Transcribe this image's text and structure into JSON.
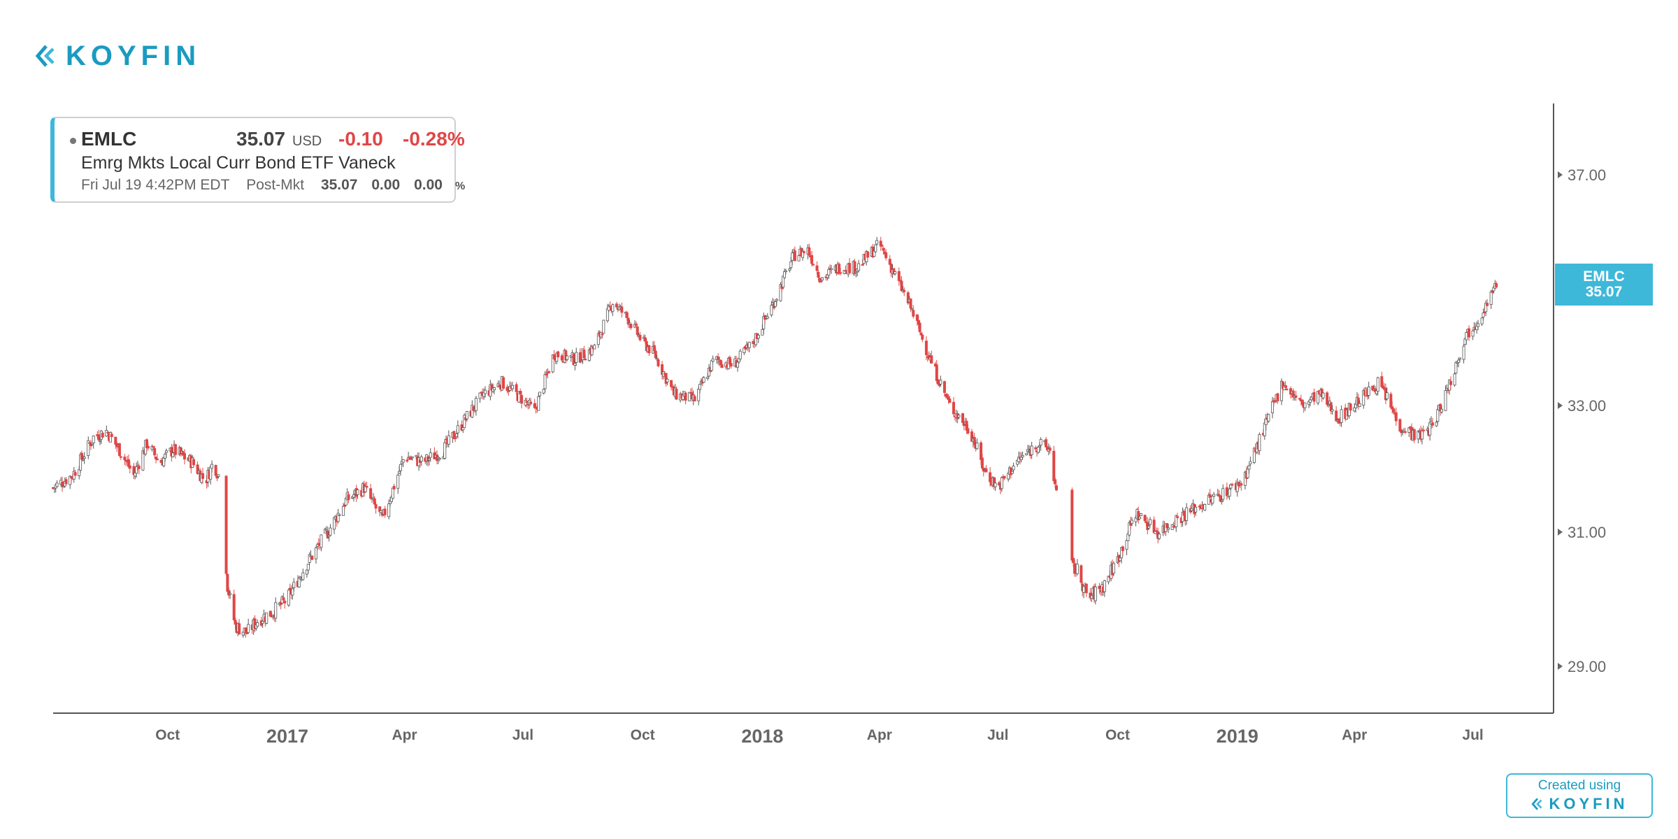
{
  "logo": {
    "icon": "koyfin-logo-icon",
    "text": "KOYFIN",
    "color": "#1a9bc0"
  },
  "quote": {
    "symbol": "EMLC",
    "price": "35.07",
    "currency": "USD",
    "change": "-0.10",
    "change_pct": "-0.28%",
    "name": "Emrg Mkts Local Curr Bond ETF Vaneck",
    "timestamp": "Fri Jul 19 4:42PM EDT",
    "session_label": "Post-Mkt",
    "post_price": "35.07",
    "post_change": "0.00",
    "post_change_pct": "0.00",
    "post_change_pct_sign": "%",
    "accent_color": "#3eb8d9",
    "negative_color": "#e04646"
  },
  "price_tag": {
    "symbol": "EMLC",
    "price": "35.07",
    "color": "#3eb8d9"
  },
  "badge": {
    "top": "Created using",
    "logo_text": "KOYFIN"
  },
  "chart_data": {
    "type": "candlestick",
    "title": "",
    "y_ticks": [
      "37.00",
      "33.00",
      "31.00",
      "29.00"
    ],
    "y_tick_values": [
      37.0,
      33.0,
      31.0,
      29.0
    ],
    "ylim": [
      28.3,
      38.2
    ],
    "x_ticks": [
      {
        "label": "Oct",
        "date": "2016-10-01",
        "bold": false
      },
      {
        "label": "2017",
        "date": "2017-01-01",
        "bold": true
      },
      {
        "label": "Apr",
        "date": "2017-04-01",
        "bold": false
      },
      {
        "label": "Jul",
        "date": "2017-07-01",
        "bold": false
      },
      {
        "label": "Oct",
        "date": "2017-10-01",
        "bold": false
      },
      {
        "label": "2018",
        "date": "2018-01-01",
        "bold": true
      },
      {
        "label": "Apr",
        "date": "2018-04-01",
        "bold": false
      },
      {
        "label": "Jul",
        "date": "2018-07-01",
        "bold": false
      },
      {
        "label": "Oct",
        "date": "2018-10-01",
        "bold": false
      },
      {
        "label": "2019",
        "date": "2019-01-01",
        "bold": true
      },
      {
        "label": "Apr",
        "date": "2019-04-01",
        "bold": false
      },
      {
        "label": "Jul",
        "date": "2019-07-01",
        "bold": false
      }
    ],
    "x_range": [
      "2016-07-05",
      "2019-09-01"
    ],
    "up_color": "#555555",
    "down_color": "#e04646",
    "series": [
      {
        "name": "EMLC",
        "close_path": [
          [
            "2016-07-05",
            31.7
          ],
          [
            "2016-07-20",
            31.9
          ],
          [
            "2016-08-05",
            32.5
          ],
          [
            "2016-08-15",
            32.6
          ],
          [
            "2016-08-25",
            32.3
          ],
          [
            "2016-09-05",
            31.9
          ],
          [
            "2016-09-15",
            32.4
          ],
          [
            "2016-09-25",
            32.1
          ],
          [
            "2016-10-05",
            32.3
          ],
          [
            "2016-10-20",
            32.1
          ],
          [
            "2016-10-30",
            31.8
          ],
          [
            "2016-11-05",
            32.1
          ],
          [
            "2016-11-09",
            31.9
          ],
          [
            "2016-11-12",
            31.3
          ],
          [
            "2016-11-16",
            30.2
          ],
          [
            "2016-11-22",
            29.6
          ],
          [
            "2016-12-01",
            29.5
          ],
          [
            "2016-12-10",
            29.7
          ],
          [
            "2016-12-20",
            29.8
          ],
          [
            "2017-01-01",
            30.0
          ],
          [
            "2017-01-15",
            30.5
          ],
          [
            "2017-02-01",
            31.0
          ],
          [
            "2017-02-15",
            31.5
          ],
          [
            "2017-03-01",
            31.7
          ],
          [
            "2017-03-15",
            31.2
          ],
          [
            "2017-04-01",
            32.2
          ],
          [
            "2017-04-15",
            32.1
          ],
          [
            "2017-05-01",
            32.3
          ],
          [
            "2017-05-15",
            32.7
          ],
          [
            "2017-06-01",
            33.2
          ],
          [
            "2017-06-15",
            33.4
          ],
          [
            "2017-07-01",
            33.1
          ],
          [
            "2017-07-10",
            32.9
          ],
          [
            "2017-07-25",
            33.9
          ],
          [
            "2017-08-10",
            33.8
          ],
          [
            "2017-08-25",
            34.0
          ],
          [
            "2017-09-08",
            34.8
          ],
          [
            "2017-09-20",
            34.5
          ],
          [
            "2017-10-01",
            34.1
          ],
          [
            "2017-10-10",
            33.9
          ],
          [
            "2017-10-25",
            33.2
          ],
          [
            "2017-11-10",
            33.1
          ],
          [
            "2017-11-25",
            33.8
          ],
          [
            "2017-12-10",
            33.7
          ],
          [
            "2017-12-25",
            34.1
          ],
          [
            "2018-01-10",
            34.8
          ],
          [
            "2018-01-25",
            35.6
          ],
          [
            "2018-02-05",
            35.7
          ],
          [
            "2018-02-15",
            35.2
          ],
          [
            "2018-03-01",
            35.4
          ],
          [
            "2018-03-15",
            35.4
          ],
          [
            "2018-04-01",
            35.8
          ],
          [
            "2018-04-10",
            35.4
          ],
          [
            "2018-04-25",
            34.7
          ],
          [
            "2018-05-10",
            33.8
          ],
          [
            "2018-05-25",
            33.0
          ],
          [
            "2018-06-10",
            32.6
          ],
          [
            "2018-06-20",
            32.0
          ],
          [
            "2018-07-01",
            31.7
          ],
          [
            "2018-07-15",
            32.1
          ],
          [
            "2018-08-01",
            32.4
          ],
          [
            "2018-08-10",
            32.3
          ],
          [
            "2018-08-15",
            31.6
          ],
          [
            "2018-08-20",
            30.6
          ],
          [
            "2018-09-01",
            30.4
          ],
          [
            "2018-09-08",
            30.0
          ],
          [
            "2018-09-20",
            30.2
          ],
          [
            "2018-10-01",
            30.6
          ],
          [
            "2018-10-15",
            31.3
          ],
          [
            "2018-11-01",
            31.0
          ],
          [
            "2018-11-15",
            31.2
          ],
          [
            "2018-12-01",
            31.4
          ],
          [
            "2018-12-20",
            31.6
          ],
          [
            "2019-01-05",
            31.8
          ],
          [
            "2019-01-25",
            32.8
          ],
          [
            "2019-02-05",
            33.4
          ],
          [
            "2019-02-20",
            33.0
          ],
          [
            "2019-03-05",
            33.2
          ],
          [
            "2019-03-20",
            32.8
          ],
          [
            "2019-04-05",
            33.1
          ],
          [
            "2019-04-20",
            33.4
          ],
          [
            "2019-05-05",
            32.7
          ],
          [
            "2019-05-20",
            32.5
          ],
          [
            "2019-06-01",
            32.7
          ],
          [
            "2019-06-15",
            33.5
          ],
          [
            "2019-06-25",
            34.2
          ],
          [
            "2019-07-05",
            34.5
          ],
          [
            "2019-07-19",
            35.07
          ]
        ],
        "gaps": [
          [
            "2016-11-09",
            "2016-11-15"
          ],
          [
            "2018-08-15",
            "2018-08-25"
          ]
        ]
      }
    ],
    "grid": false,
    "legend": "none"
  }
}
